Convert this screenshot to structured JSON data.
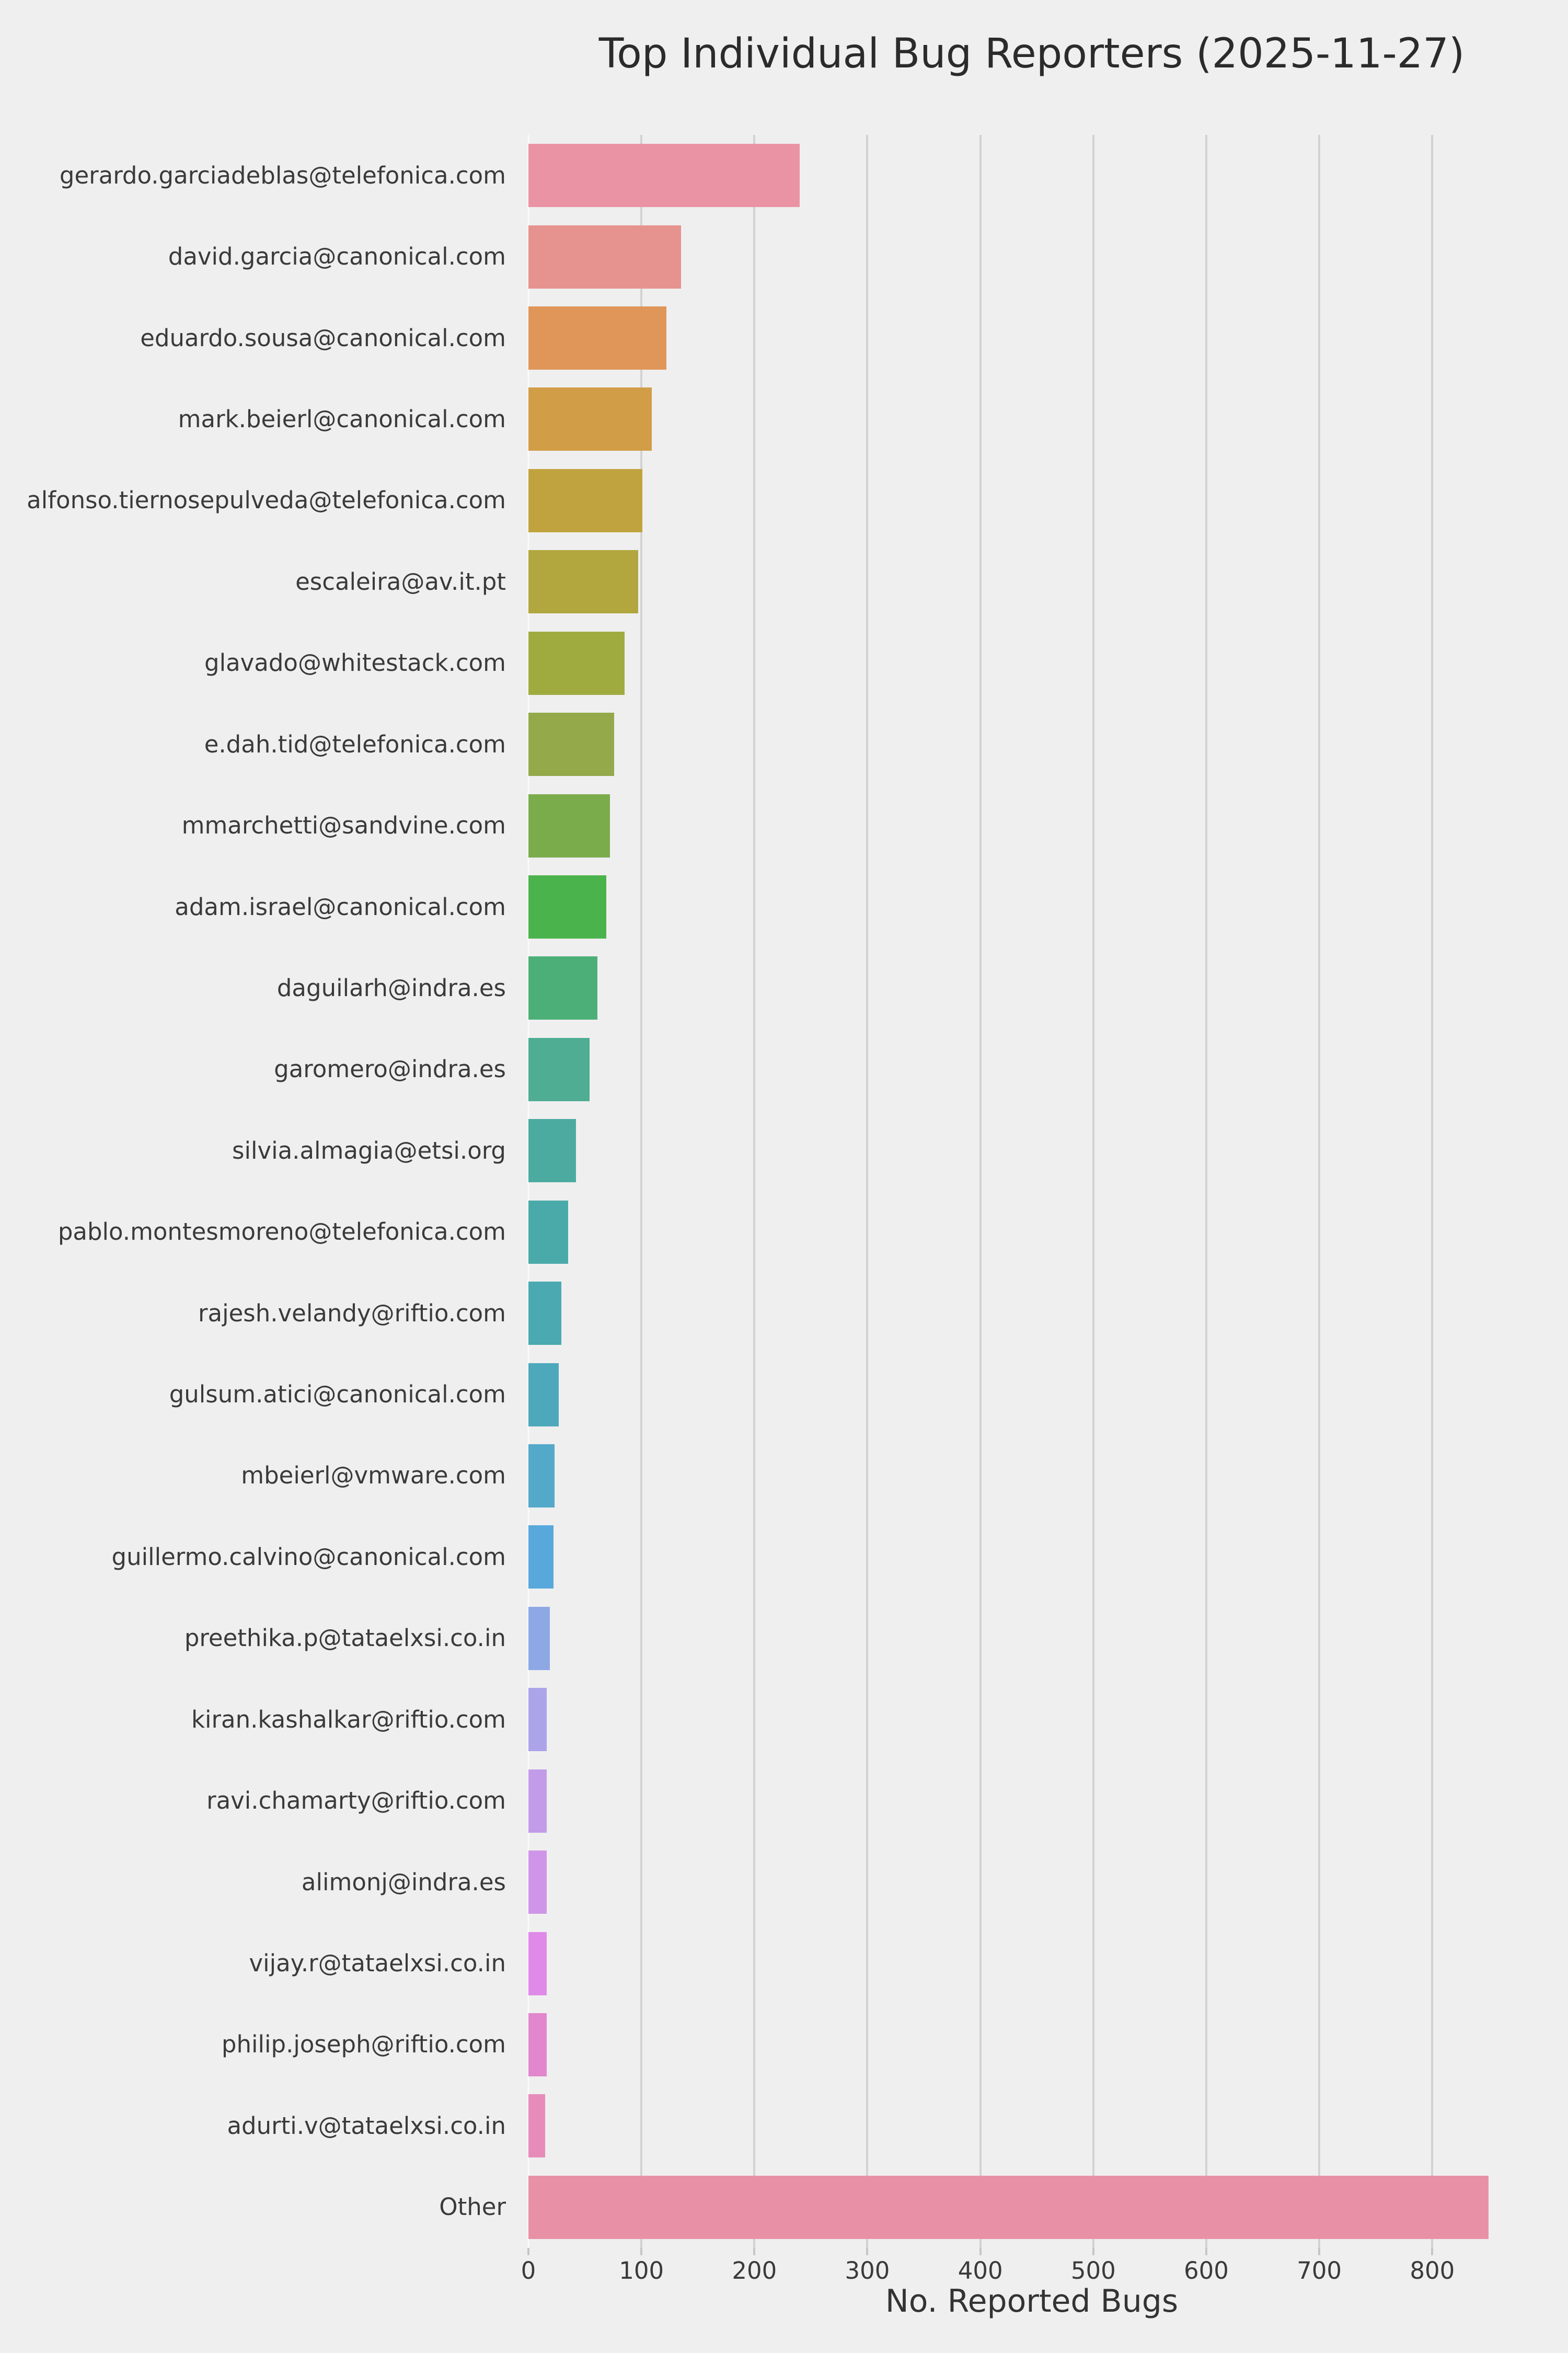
{
  "title": "Top Individual Bug Reporters (2025-11-27)",
  "x_axis_label": "No. Reported Bugs",
  "background_color": "#efefef",
  "gridline_color": "#d2d2d2",
  "text_color": "#3a3a3a",
  "title_color": "#2b2b2b",
  "chart_data": {
    "type": "bar",
    "orientation": "horizontal",
    "title": "Top Individual Bug Reporters (2025-11-27)",
    "xlabel": "No. Reported Bugs",
    "ylabel": "",
    "xlim": [
      0,
      891
    ],
    "xticks": [
      0,
      100,
      200,
      300,
      400,
      500,
      600,
      700,
      800
    ],
    "grid": true,
    "legend": false,
    "categories": [
      "gerardo.garciadeblas@telefonica.com",
      "david.garcia@canonical.com",
      "eduardo.sousa@canonical.com",
      "mark.beierl@canonical.com",
      "alfonso.tiernosepulveda@telefonica.com",
      "escaleira@av.it.pt",
      "glavado@whitestack.com",
      "e.dah.tid@telefonica.com",
      "mmarchetti@sandvine.com",
      "adam.israel@canonical.com",
      "daguilarh@indra.es",
      "garomero@indra.es",
      "silvia.almagia@etsi.org",
      "pablo.montesmoreno@telefonica.com",
      "rajesh.velandy@riftio.com",
      "gulsum.atici@canonical.com",
      "mbeierl@vmware.com",
      "guillermo.calvino@canonical.com",
      "preethika.p@tataelxsi.co.in",
      "kiran.kashalkar@riftio.com",
      "ravi.chamarty@riftio.com",
      "alimonj@indra.es",
      "vijay.r@tataelxsi.co.in",
      "philip.joseph@riftio.com",
      "adurti.v@tataelxsi.co.in",
      "Other"
    ],
    "values": [
      240,
      135,
      122,
      109,
      101,
      97,
      85,
      76,
      72,
      69,
      61,
      54,
      42,
      35,
      29,
      27,
      23,
      22,
      19,
      16,
      16,
      16,
      16,
      16,
      15,
      850
    ],
    "colors": [
      "#ea93a4",
      "#e6938f",
      "#e09659",
      "#d29d47",
      "#c0a33e",
      "#b1a73e",
      "#a0ab3f",
      "#93a94a",
      "#7bac4c",
      "#4bb34c",
      "#4daf78",
      "#4ead93",
      "#4caba1",
      "#4aaaa9",
      "#4aa9b1",
      "#4ea8bb",
      "#54a8c9",
      "#58a8dc",
      "#8da8e4",
      "#aba4e9",
      "#c29ce9",
      "#cf95e8",
      "#df8ae8",
      "#e287ce",
      "#e78cba",
      "#e891a6"
    ]
  }
}
